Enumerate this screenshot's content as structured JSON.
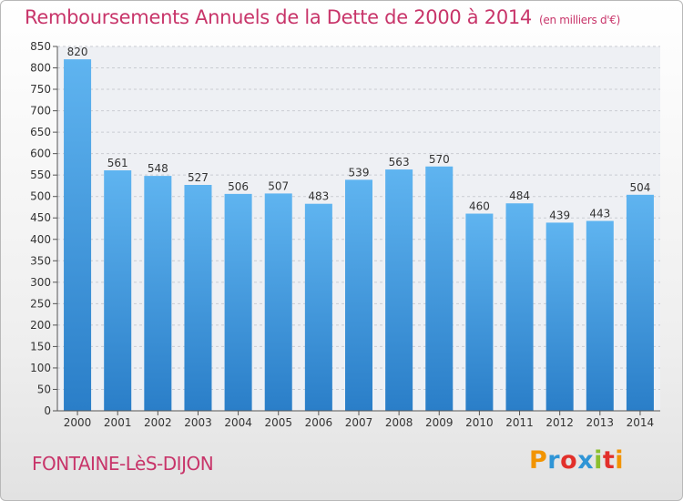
{
  "header": {
    "title": "Remboursements Annuels de la Dette de 2000 à 2014",
    "unit": "(en milliers d'€)"
  },
  "footer": {
    "commune": "FONTAINE-LèS-DIJON",
    "logo_text": "Proxiti",
    "logo_colors": [
      "#f29400",
      "#2f95d6",
      "#e2302b",
      "#2f95d6",
      "#8bbf2e",
      "#e2302b",
      "#f29400"
    ]
  },
  "colors": {
    "title": "#c8356a",
    "bar_top": "#5fb4f0",
    "bar_bottom": "#2a7ec8"
  },
  "chart_data": {
    "type": "bar",
    "categories": [
      "2000",
      "2001",
      "2002",
      "2003",
      "2004",
      "2005",
      "2006",
      "2007",
      "2008",
      "2009",
      "2010",
      "2011",
      "2012",
      "2013",
      "2014"
    ],
    "values": [
      820,
      561,
      548,
      527,
      506,
      507,
      483,
      539,
      563,
      570,
      460,
      484,
      439,
      443,
      504
    ],
    "ylim": [
      0,
      850
    ],
    "yticks": [
      0,
      50,
      100,
      150,
      200,
      250,
      300,
      350,
      400,
      450,
      500,
      550,
      600,
      650,
      700,
      750,
      800,
      850
    ],
    "grid": true
  }
}
